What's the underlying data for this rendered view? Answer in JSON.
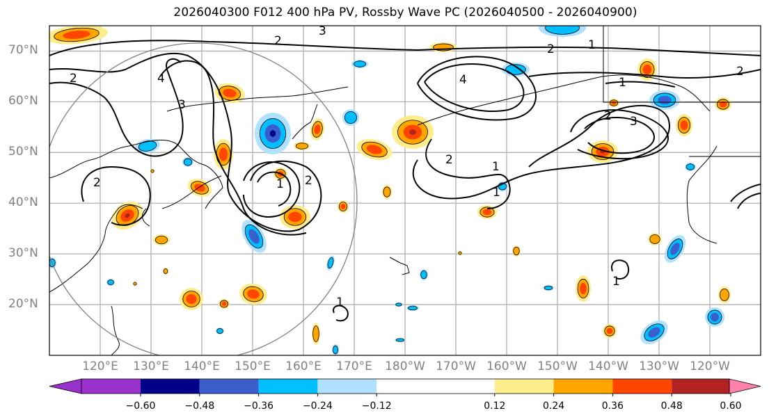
{
  "title": "2026040300 F012 400 hPa PV, Rossby Wave PC (2026040500 - 2026040900)",
  "map": {
    "projection": "Plate Carree",
    "lon_range": [
      110,
      250
    ],
    "lat_range": [
      10,
      75
    ],
    "lat_labels": [
      "70°N",
      "60°N",
      "50°N",
      "40°N",
      "30°N",
      "20°N"
    ],
    "lat_values": [
      70,
      60,
      50,
      40,
      30,
      20
    ],
    "lon_labels": [
      "120°E",
      "130°E",
      "140°E",
      "150°E",
      "160°E",
      "170°E",
      "180°W",
      "170°W",
      "160°W",
      "150°W",
      "140°W",
      "130°W",
      "120°W"
    ],
    "lon_values": [
      120,
      130,
      140,
      150,
      160,
      170,
      180,
      190,
      200,
      210,
      220,
      230,
      240
    ],
    "gridline_color": "#b0b0b0",
    "contour_labels": [
      "1",
      "2",
      "3",
      "4"
    ]
  },
  "colorbar": {
    "ticks": [
      "−0.60",
      "−0.48",
      "−0.36",
      "−0.24",
      "−0.12",
      "0.12",
      "0.24",
      "0.36",
      "0.48",
      "0.60"
    ],
    "levels": [
      -0.6,
      -0.48,
      -0.36,
      -0.24,
      -0.12,
      0.12,
      0.24,
      0.36,
      0.48,
      0.6
    ],
    "colors": [
      "#9932cc",
      "#00008b",
      "#3a5fcd",
      "#00bfff",
      "#b0e2ff",
      "#ffffff",
      "#ffec8b",
      "#ffa500",
      "#ff4500",
      "#b22222",
      "#ff82ab"
    ]
  }
}
